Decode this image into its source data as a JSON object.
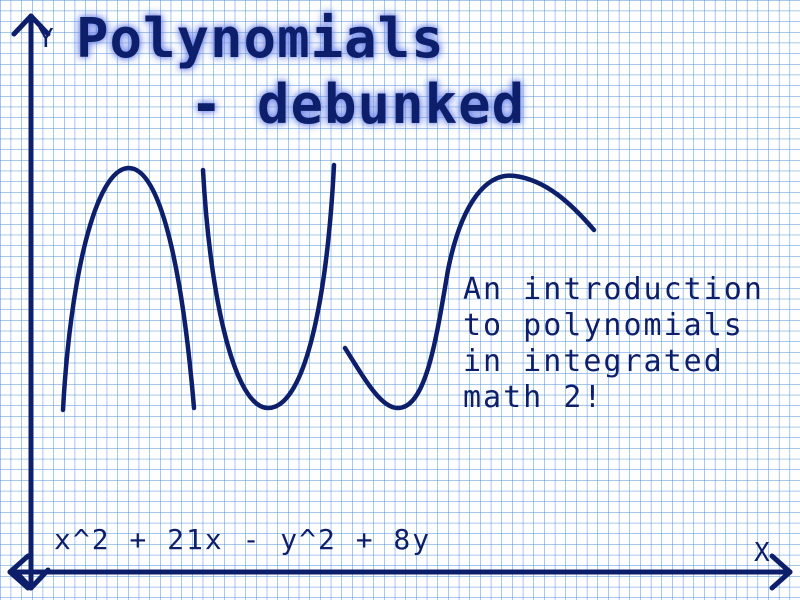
{
  "slide": {
    "title_line1": "Polynomials",
    "title_line2": "- debunked",
    "subtitle_lines": [
      "An introduction",
      "to polynomials",
      "in integrated",
      "math 2!"
    ],
    "equation": "x^2 + 21x - y^2 + 8y",
    "y_axis_label": "Y",
    "x_axis_label": "X"
  },
  "colors": {
    "background": "#ffffff",
    "grid_line": "#4a8fd8",
    "ink": "#0d1f6b",
    "title_glow": "#6f86e8"
  },
  "decorations": {
    "background_pattern": "graph-paper-grid",
    "curves": [
      "hill-curve",
      "valley-curve",
      "wave-curve"
    ],
    "arrows": [
      "y-axis-arrow",
      "x-axis-arrow"
    ]
  }
}
